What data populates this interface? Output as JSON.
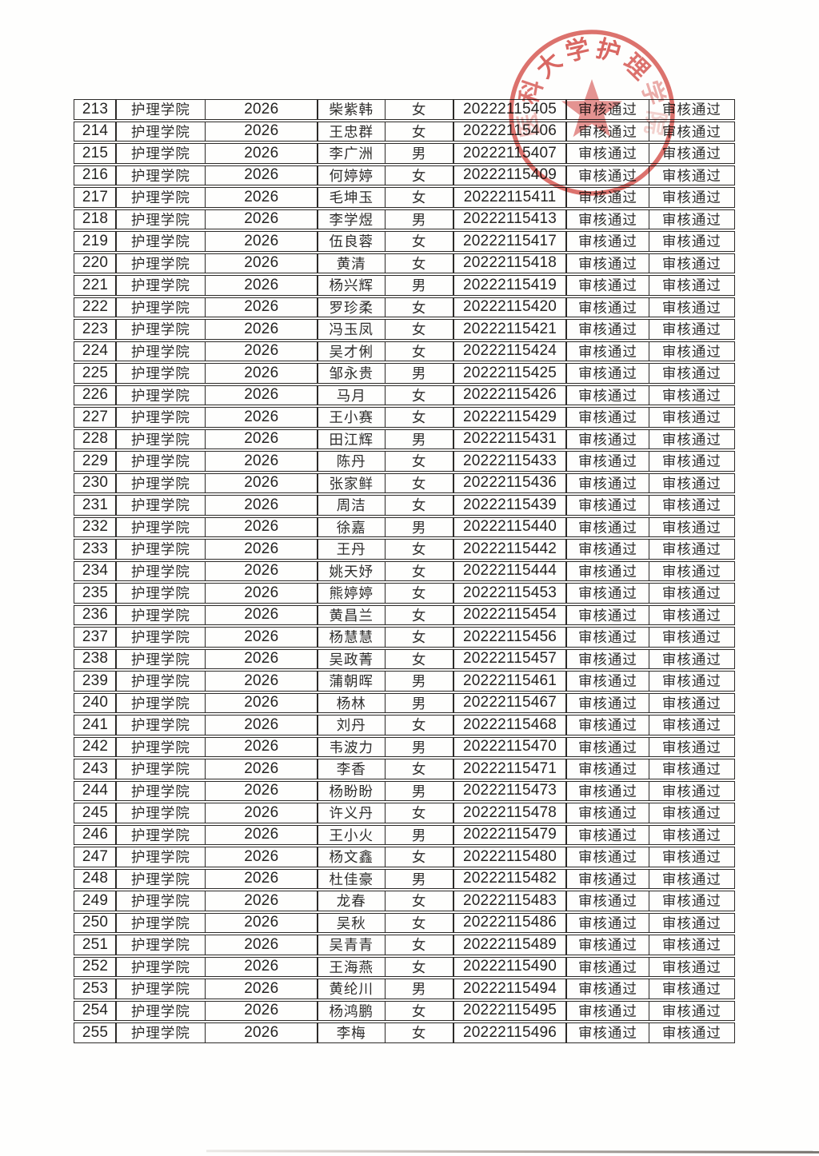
{
  "page": {
    "background": "#fefefd",
    "kind": "scanned-review-list-page"
  },
  "stamp": {
    "color": "#d24540",
    "arc_text_visible": "科大学护理",
    "ring_chars": [
      {
        "ch": "医",
        "angle": -101,
        "opacity": 0.38
      },
      {
        "ch": "科",
        "angle": -71,
        "opacity": 0.8
      },
      {
        "ch": "大",
        "angle": -42,
        "opacity": 0.88
      },
      {
        "ch": "学",
        "angle": -13,
        "opacity": 0.88
      },
      {
        "ch": "护",
        "angle": 15,
        "opacity": 0.88
      },
      {
        "ch": "理",
        "angle": 44,
        "opacity": 0.82
      },
      {
        "ch": "学",
        "angle": 72,
        "opacity": 0.48
      },
      {
        "ch": "院",
        "angle": 99,
        "opacity": 0.26
      }
    ],
    "star": "five-pointed-star"
  },
  "table": {
    "columns": [
      "serial",
      "college",
      "year",
      "name",
      "gender",
      "student_id",
      "review_status_1",
      "review_status_2"
    ],
    "rows": [
      [
        "213",
        "护理学院",
        "2026",
        "柴紫韩",
        "女",
        "20222115405",
        "审核通过",
        "审核通过"
      ],
      [
        "214",
        "护理学院",
        "2026",
        "王忠群",
        "女",
        "20222115406",
        "审核通过",
        "审核通过"
      ],
      [
        "215",
        "护理学院",
        "2026",
        "李广洲",
        "男",
        "20222115407",
        "审核通过",
        "审核通过"
      ],
      [
        "216",
        "护理学院",
        "2026",
        "何婷婷",
        "女",
        "20222115409",
        "审核通过",
        "审核通过"
      ],
      [
        "217",
        "护理学院",
        "2026",
        "毛坤玉",
        "女",
        "20222115411",
        "审核通过",
        "审核通过"
      ],
      [
        "218",
        "护理学院",
        "2026",
        "李学煜",
        "男",
        "20222115413",
        "审核通过",
        "审核通过"
      ],
      [
        "219",
        "护理学院",
        "2026",
        "伍良蓉",
        "女",
        "20222115417",
        "审核通过",
        "审核通过"
      ],
      [
        "220",
        "护理学院",
        "2026",
        "黄清",
        "女",
        "20222115418",
        "审核通过",
        "审核通过"
      ],
      [
        "221",
        "护理学院",
        "2026",
        "杨兴辉",
        "男",
        "20222115419",
        "审核通过",
        "审核通过"
      ],
      [
        "222",
        "护理学院",
        "2026",
        "罗珍柔",
        "女",
        "20222115420",
        "审核通过",
        "审核通过"
      ],
      [
        "223",
        "护理学院",
        "2026",
        "冯玉凤",
        "女",
        "20222115421",
        "审核通过",
        "审核通过"
      ],
      [
        "224",
        "护理学院",
        "2026",
        "吴才俐",
        "女",
        "20222115424",
        "审核通过",
        "审核通过"
      ],
      [
        "225",
        "护理学院",
        "2026",
        "邹永贵",
        "男",
        "20222115425",
        "审核通过",
        "审核通过"
      ],
      [
        "226",
        "护理学院",
        "2026",
        "马月",
        "女",
        "20222115426",
        "审核通过",
        "审核通过"
      ],
      [
        "227",
        "护理学院",
        "2026",
        "王小赛",
        "女",
        "20222115429",
        "审核通过",
        "审核通过"
      ],
      [
        "228",
        "护理学院",
        "2026",
        "田江辉",
        "男",
        "20222115431",
        "审核通过",
        "审核通过"
      ],
      [
        "229",
        "护理学院",
        "2026",
        "陈丹",
        "女",
        "20222115433",
        "审核通过",
        "审核通过"
      ],
      [
        "230",
        "护理学院",
        "2026",
        "张家鲜",
        "女",
        "20222115436",
        "审核通过",
        "审核通过"
      ],
      [
        "231",
        "护理学院",
        "2026",
        "周洁",
        "女",
        "20222115439",
        "审核通过",
        "审核通过"
      ],
      [
        "232",
        "护理学院",
        "2026",
        "徐嘉",
        "男",
        "20222115440",
        "审核通过",
        "审核通过"
      ],
      [
        "233",
        "护理学院",
        "2026",
        "王丹",
        "女",
        "20222115442",
        "审核通过",
        "审核通过"
      ],
      [
        "234",
        "护理学院",
        "2026",
        "姚天妤",
        "女",
        "20222115444",
        "审核通过",
        "审核通过"
      ],
      [
        "235",
        "护理学院",
        "2026",
        "熊婷婷",
        "女",
        "20222115453",
        "审核通过",
        "审核通过"
      ],
      [
        "236",
        "护理学院",
        "2026",
        "黄昌兰",
        "女",
        "20222115454",
        "审核通过",
        "审核通过"
      ],
      [
        "237",
        "护理学院",
        "2026",
        "杨慧慧",
        "女",
        "20222115456",
        "审核通过",
        "审核通过"
      ],
      [
        "238",
        "护理学院",
        "2026",
        "吴政菁",
        "女",
        "20222115457",
        "审核通过",
        "审核通过"
      ],
      [
        "239",
        "护理学院",
        "2026",
        "蒲朝晖",
        "男",
        "20222115461",
        "审核通过",
        "审核通过"
      ],
      [
        "240",
        "护理学院",
        "2026",
        "杨林",
        "男",
        "20222115467",
        "审核通过",
        "审核通过"
      ],
      [
        "241",
        "护理学院",
        "2026",
        "刘丹",
        "女",
        "20222115468",
        "审核通过",
        "审核通过"
      ],
      [
        "242",
        "护理学院",
        "2026",
        "韦波力",
        "男",
        "20222115470",
        "审核通过",
        "审核通过"
      ],
      [
        "243",
        "护理学院",
        "2026",
        "李香",
        "女",
        "20222115471",
        "审核通过",
        "审核通过"
      ],
      [
        "244",
        "护理学院",
        "2026",
        "杨盼盼",
        "男",
        "20222115473",
        "审核通过",
        "审核通过"
      ],
      [
        "245",
        "护理学院",
        "2026",
        "许义丹",
        "女",
        "20222115478",
        "审核通过",
        "审核通过"
      ],
      [
        "246",
        "护理学院",
        "2026",
        "王小火",
        "男",
        "20222115479",
        "审核通过",
        "审核通过"
      ],
      [
        "247",
        "护理学院",
        "2026",
        "杨文鑫",
        "女",
        "20222115480",
        "审核通过",
        "审核通过"
      ],
      [
        "248",
        "护理学院",
        "2026",
        "杜佳豪",
        "男",
        "20222115482",
        "审核通过",
        "审核通过"
      ],
      [
        "249",
        "护理学院",
        "2026",
        "龙春",
        "女",
        "20222115483",
        "审核通过",
        "审核通过"
      ],
      [
        "250",
        "护理学院",
        "2026",
        "吴秋",
        "女",
        "20222115486",
        "审核通过",
        "审核通过"
      ],
      [
        "251",
        "护理学院",
        "2026",
        "吴青青",
        "女",
        "20222115489",
        "审核通过",
        "审核通过"
      ],
      [
        "252",
        "护理学院",
        "2026",
        "王海燕",
        "女",
        "20222115490",
        "审核通过",
        "审核通过"
      ],
      [
        "253",
        "护理学院",
        "2026",
        "黄纶川",
        "男",
        "20222115494",
        "审核通过",
        "审核通过"
      ],
      [
        "254",
        "护理学院",
        "2026",
        "杨鸿鹏",
        "女",
        "20222115495",
        "审核通过",
        "审核通过"
      ],
      [
        "255",
        "护理学院",
        "2026",
        "李梅",
        "女",
        "20222115496",
        "审核通过",
        "审核通过"
      ]
    ]
  }
}
